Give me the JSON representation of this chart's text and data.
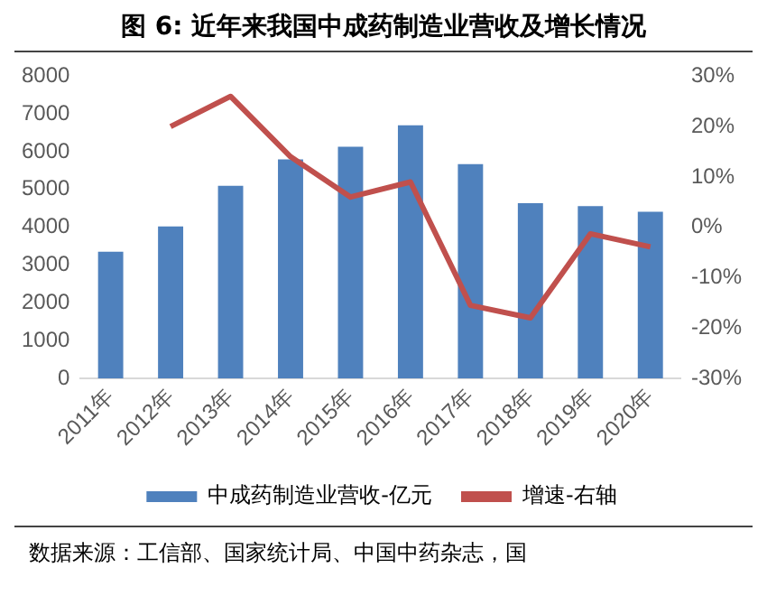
{
  "chart_data": {
    "type": "bar",
    "title": "图 6:  近年来我国中成药制造业营收及增长情况",
    "categories": [
      "2011年",
      "2012年",
      "2013年",
      "2014年",
      "2015年",
      "2016年",
      "2017年",
      "2018年",
      "2019年",
      "2020年"
    ],
    "series": [
      {
        "name": "中成药制造业营收-亿元",
        "color": "#4f81bd",
        "values": [
          3350,
          4020,
          5100,
          5800,
          6130,
          6700,
          5670,
          4640,
          4560,
          4410
        ]
      },
      {
        "name": "增速-右轴",
        "type": "line",
        "axis": "y2",
        "color": "#c0504d",
        "values": [
          null,
          20,
          26,
          14,
          6,
          9,
          -15.5,
          -18,
          -1.3,
          -3.9
        ]
      }
    ],
    "ylim": [
      0,
      8000
    ],
    "yticks": [
      0,
      1000,
      2000,
      3000,
      4000,
      5000,
      6000,
      7000,
      8000
    ],
    "y2lim": [
      -30,
      30
    ],
    "y2ticks": [
      {
        "value": -30,
        "label": "-30%"
      },
      {
        "value": -20,
        "label": "-20%"
      },
      {
        "value": -10,
        "label": "-10%"
      },
      {
        "value": 0,
        "label": "0%"
      },
      {
        "value": 10,
        "label": "10%"
      },
      {
        "value": 20,
        "label": "20%"
      },
      {
        "value": 30,
        "label": "30%"
      }
    ],
    "grid": false,
    "legend": "bottom",
    "marker": "none",
    "annotations": [
      "数据来源：工信部、国家统计局、中国中药杂志，国"
    ]
  }
}
